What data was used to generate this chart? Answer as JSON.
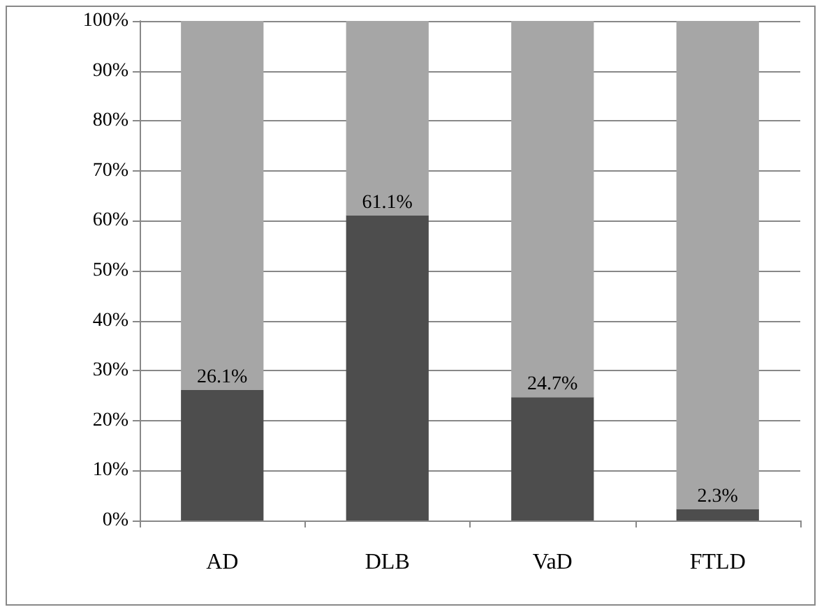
{
  "chart_data": {
    "type": "bar",
    "stacked": true,
    "categories": [
      "AD",
      "DLB",
      "VaD",
      "FTLD"
    ],
    "series": [
      {
        "color": "#4d4d4d",
        "values": [
          26.1,
          61.1,
          24.7,
          2.3
        ],
        "value_labels": [
          "26.1%",
          "61.1%",
          "24.7%",
          "2.3%"
        ]
      },
      {
        "color": "#a6a6a6",
        "values": [
          73.9,
          38.9,
          75.3,
          97.7
        ]
      }
    ],
    "ylim": [
      0,
      100
    ],
    "yticks": [
      {
        "value": 0,
        "label": "0%"
      },
      {
        "value": 10,
        "label": "10%"
      },
      {
        "value": 20,
        "label": "20%"
      },
      {
        "value": 30,
        "label": "30%"
      },
      {
        "value": 40,
        "label": "40%"
      },
      {
        "value": 50,
        "label": "50%"
      },
      {
        "value": 60,
        "label": "60%"
      },
      {
        "value": 70,
        "label": "70%"
      },
      {
        "value": 80,
        "label": "80%"
      },
      {
        "value": 90,
        "label": "90%"
      },
      {
        "value": 100,
        "label": "100%"
      }
    ],
    "grid": "y"
  }
}
